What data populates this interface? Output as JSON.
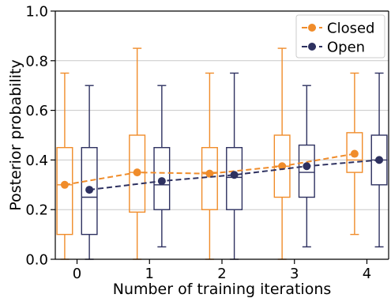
{
  "chart_data": {
    "type": "box",
    "xlabel": "Number of training iterations",
    "ylabel": "Posterior probability",
    "ylim": [
      0.0,
      1.0
    ],
    "xlim": [
      -0.3,
      4.3
    ],
    "x_ticks": [
      0,
      1,
      2,
      3,
      4
    ],
    "x_tick_labels": [
      "0",
      "1",
      "2",
      "3",
      "4"
    ],
    "y_ticks": [
      0.0,
      0.2,
      0.4,
      0.6,
      0.8,
      1.0
    ],
    "y_tick_labels": [
      "0.0",
      "0.2",
      "0.4",
      "0.6",
      "0.8",
      "1.0"
    ],
    "grid": "horizontal",
    "legend_position": "top-right",
    "series": [
      {
        "name": "Closed",
        "color": "#f08c2a",
        "offset": -0.17,
        "x": [
          0,
          1,
          2,
          3,
          4
        ],
        "mean": [
          0.3,
          0.35,
          0.345,
          0.375,
          0.425
        ],
        "boxes": [
          {
            "whisker_low": 0.0,
            "q1": 0.1,
            "median": 0.3,
            "q3": 0.45,
            "whisker_high": 0.75
          },
          {
            "whisker_low": 0.0,
            "q1": 0.19,
            "median": 0.35,
            "q3": 0.5,
            "whisker_high": 0.85
          },
          {
            "whisker_low": 0.0,
            "q1": 0.2,
            "median": 0.35,
            "q3": 0.45,
            "whisker_high": 0.75
          },
          {
            "whisker_low": 0.0,
            "q1": 0.25,
            "median": 0.375,
            "q3": 0.5,
            "whisker_high": 0.85
          },
          {
            "whisker_low": 0.1,
            "q1": 0.35,
            "median": 0.4,
            "q3": 0.51,
            "whisker_high": 0.75
          }
        ]
      },
      {
        "name": "Open",
        "color": "#2e3160",
        "offset": 0.17,
        "x": [
          0,
          1,
          2,
          3,
          4
        ],
        "mean": [
          0.28,
          0.315,
          0.34,
          0.375,
          0.4
        ],
        "boxes": [
          {
            "whisker_low": 0.0,
            "q1": 0.1,
            "median": 0.25,
            "q3": 0.45,
            "whisker_high": 0.7
          },
          {
            "whisker_low": 0.05,
            "q1": 0.2,
            "median": 0.3,
            "q3": 0.45,
            "whisker_high": 0.7
          },
          {
            "whisker_low": 0.0,
            "q1": 0.2,
            "median": 0.33,
            "q3": 0.45,
            "whisker_high": 0.75
          },
          {
            "whisker_low": 0.05,
            "q1": 0.25,
            "median": 0.35,
            "q3": 0.46,
            "whisker_high": 0.7
          },
          {
            "whisker_low": 0.05,
            "q1": 0.3,
            "median": 0.4,
            "q3": 0.5,
            "whisker_high": 0.75
          }
        ]
      }
    ]
  }
}
